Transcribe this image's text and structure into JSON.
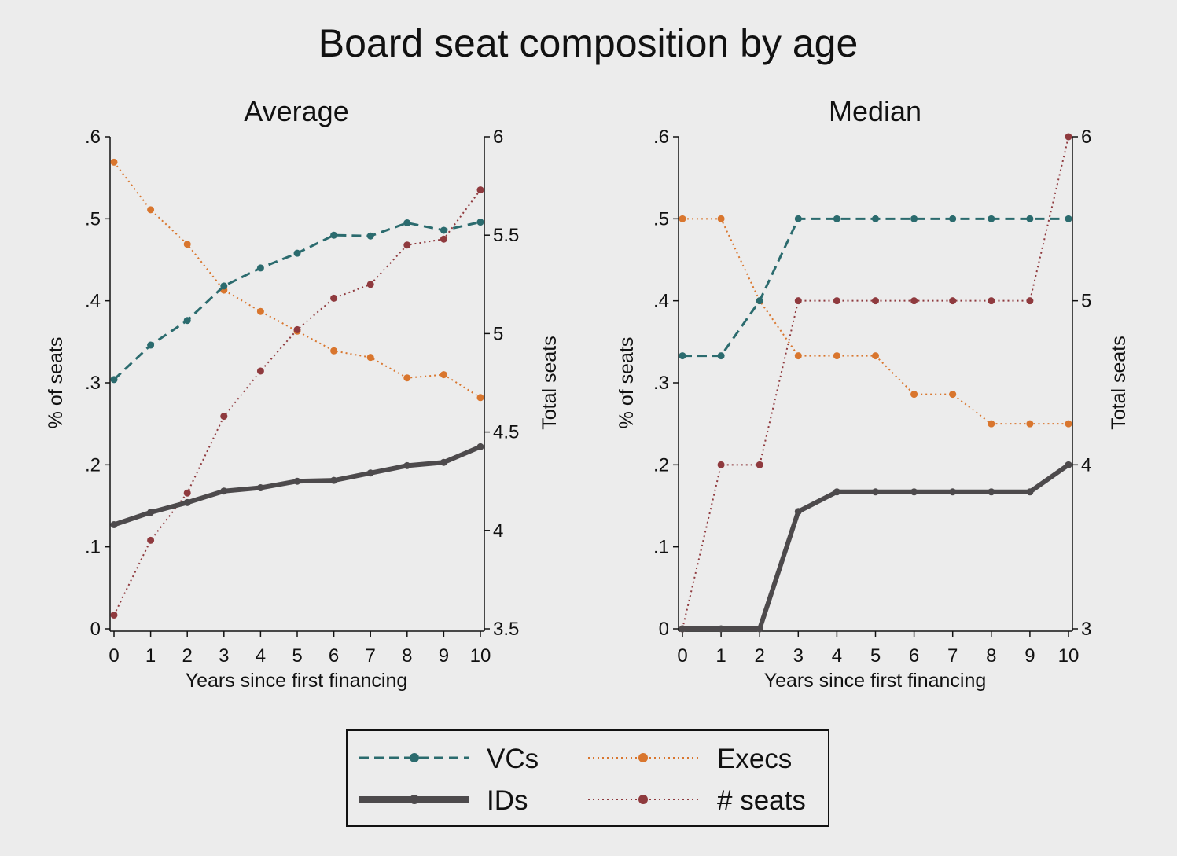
{
  "title": "Board seat composition by age",
  "colors": {
    "vcs": "#2b6b6e",
    "execs": "#d9762e",
    "ids": "#4d4a4c",
    "seats": "#8f3a3e",
    "background": "#ececec"
  },
  "legend": {
    "vcs": "VCs",
    "execs": "Execs",
    "ids": "IDs",
    "seats": "# seats"
  },
  "chart_data": [
    {
      "type": "line",
      "title": "Average",
      "xlabel": "Years since first financing",
      "ylabel": "% of seats",
      "y2label": "Total seats",
      "x": [
        0,
        1,
        2,
        3,
        4,
        5,
        6,
        7,
        8,
        9,
        10
      ],
      "xticks": [
        "0",
        "1",
        "2",
        "3",
        "4",
        "5",
        "6",
        "7",
        "8",
        "9",
        "10"
      ],
      "ylim": [
        0,
        0.6
      ],
      "yticks": [
        "0",
        ".1",
        ".2",
        ".3",
        ".4",
        ".5",
        ".6"
      ],
      "y2lim": [
        3.5,
        6
      ],
      "y2ticks": [
        "3.5",
        "4",
        "4.5",
        "5",
        "5.5",
        "6"
      ],
      "series": [
        {
          "name": "VCs",
          "axis": "left",
          "style": "dash",
          "values": [
            0.304,
            0.346,
            0.376,
            0.418,
            0.44,
            0.458,
            0.48,
            0.479,
            0.495,
            0.486,
            0.496
          ]
        },
        {
          "name": "Execs",
          "axis": "left",
          "style": "dotted",
          "values": [
            0.569,
            0.511,
            0.469,
            0.413,
            0.387,
            0.363,
            0.339,
            0.331,
            0.306,
            0.31,
            0.282
          ]
        },
        {
          "name": "IDs",
          "axis": "left",
          "style": "solid",
          "values": [
            0.127,
            0.142,
            0.154,
            0.168,
            0.172,
            0.18,
            0.181,
            0.19,
            0.199,
            0.203,
            0.222
          ]
        },
        {
          "name": "# seats",
          "axis": "right",
          "style": "dotted",
          "values": [
            3.57,
            3.95,
            4.19,
            4.58,
            4.81,
            5.02,
            5.18,
            5.25,
            5.45,
            5.48,
            5.73
          ]
        }
      ]
    },
    {
      "type": "line",
      "title": "Median",
      "xlabel": "Years since first financing",
      "ylabel": "% of seats",
      "y2label": "Total seats",
      "x": [
        0,
        1,
        2,
        3,
        4,
        5,
        6,
        7,
        8,
        9,
        10
      ],
      "xticks": [
        "0",
        "1",
        "2",
        "3",
        "4",
        "5",
        "6",
        "7",
        "8",
        "9",
        "10"
      ],
      "ylim": [
        0,
        0.6
      ],
      "yticks": [
        "0",
        ".1",
        ".2",
        ".3",
        ".4",
        ".5",
        ".6"
      ],
      "y2lim": [
        3,
        6
      ],
      "y2ticks": [
        "3",
        "4",
        "5",
        "6"
      ],
      "series": [
        {
          "name": "VCs",
          "axis": "left",
          "style": "dash",
          "values": [
            0.333,
            0.333,
            0.4,
            0.5,
            0.5,
            0.5,
            0.5,
            0.5,
            0.5,
            0.5,
            0.5
          ]
        },
        {
          "name": "Execs",
          "axis": "left",
          "style": "dotted",
          "values": [
            0.5,
            0.5,
            0.4,
            0.333,
            0.333,
            0.333,
            0.286,
            0.286,
            0.25,
            0.25,
            0.25
          ]
        },
        {
          "name": "IDs",
          "axis": "left",
          "style": "solid",
          "values": [
            0,
            0,
            0,
            0.143,
            0.167,
            0.167,
            0.167,
            0.167,
            0.167,
            0.167,
            0.2
          ]
        },
        {
          "name": "# seats",
          "axis": "right",
          "style": "dotted",
          "values": [
            3,
            4,
            4,
            5,
            5,
            5,
            5,
            5,
            5,
            5,
            6
          ]
        }
      ]
    }
  ]
}
